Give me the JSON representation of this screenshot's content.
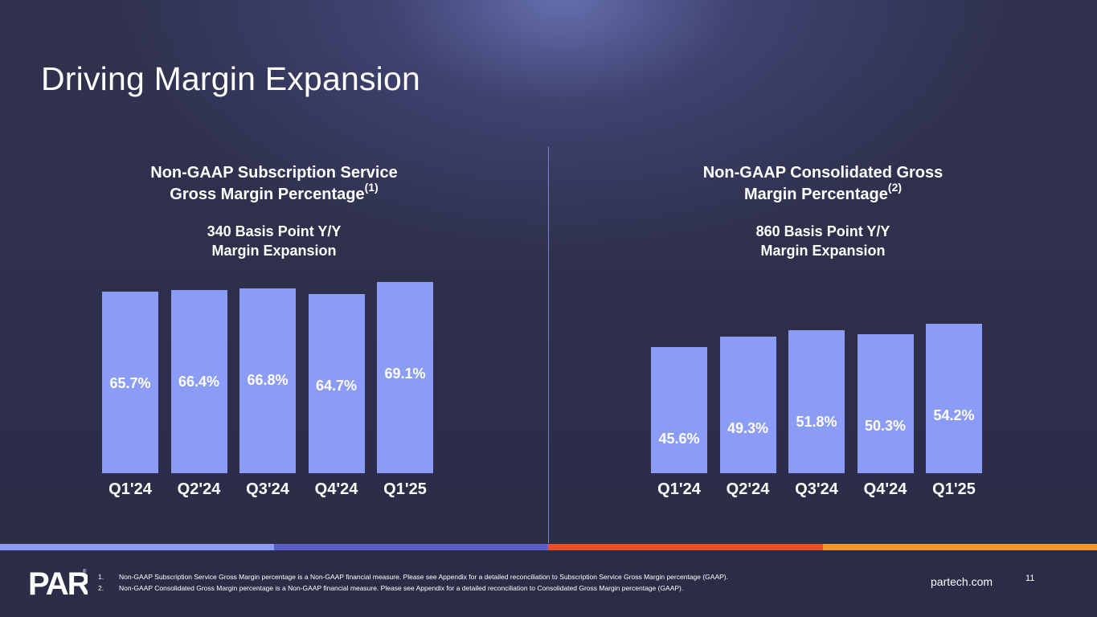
{
  "slide": {
    "title": "Driving Margin Expansion"
  },
  "chart_data": [
    {
      "type": "bar",
      "title": "Non-GAAP Subscription Service Gross Margin Percentage",
      "title_line1": "Non-GAAP Subscription Service",
      "title_line2": "Gross Margin Percentage",
      "title_sup": "(1)",
      "subtitle_line1": "340 Basis Point Y/Y",
      "subtitle_line2": "Margin Expansion",
      "categories": [
        "Q1'24",
        "Q2'24",
        "Q3'24",
        "Q4'24",
        "Q1'25"
      ],
      "values": [
        65.7,
        66.4,
        66.8,
        64.7,
        69.1
      ],
      "labels": [
        "65.7%",
        "66.4%",
        "66.8%",
        "64.7%",
        "69.1%"
      ],
      "unit": "%",
      "xlabel": "",
      "ylabel": "",
      "grid": false
    },
    {
      "type": "bar",
      "title": "Non-GAAP Consolidated Gross Margin Percentage",
      "title_line1": "Non-GAAP Consolidated Gross",
      "title_line2": "Margin Percentage",
      "title_sup": "(2)",
      "subtitle_line1": "860 Basis Point Y/Y",
      "subtitle_line2": "Margin Expansion",
      "categories": [
        "Q1'24",
        "Q2'24",
        "Q3'24",
        "Q4'24",
        "Q1'25"
      ],
      "values": [
        45.6,
        49.3,
        51.8,
        50.3,
        54.2
      ],
      "labels": [
        "45.6%",
        "49.3%",
        "51.8%",
        "50.3%",
        "54.2%"
      ],
      "unit": "%",
      "xlabel": "",
      "ylabel": "",
      "grid": false
    }
  ],
  "footer": {
    "logo_text": "PAR",
    "footnotes": [
      {
        "num": "1.",
        "text": "Non-GAAP Subscription Service Gross Margin percentage is a Non-GAAP financial measure. Please see Appendix for a detailed reconciliation to Subscription Service Gross Margin percentage (GAAP)."
      },
      {
        "num": "2.",
        "text": "Non-GAAP Consolidated Gross Margin percentage is a Non-GAAP financial measure. Please see Appendix for a detailed reconciliation to Consolidated Gross Margin percentage (GAAP)."
      }
    ],
    "website": "partech.com",
    "page_number": "11"
  },
  "colors": {
    "background": "#2d2f4a",
    "bar": "#8b9cf6",
    "stripe": [
      "#8b9cf6",
      "#5c5fc9",
      "#e8502a",
      "#f2962e"
    ]
  }
}
